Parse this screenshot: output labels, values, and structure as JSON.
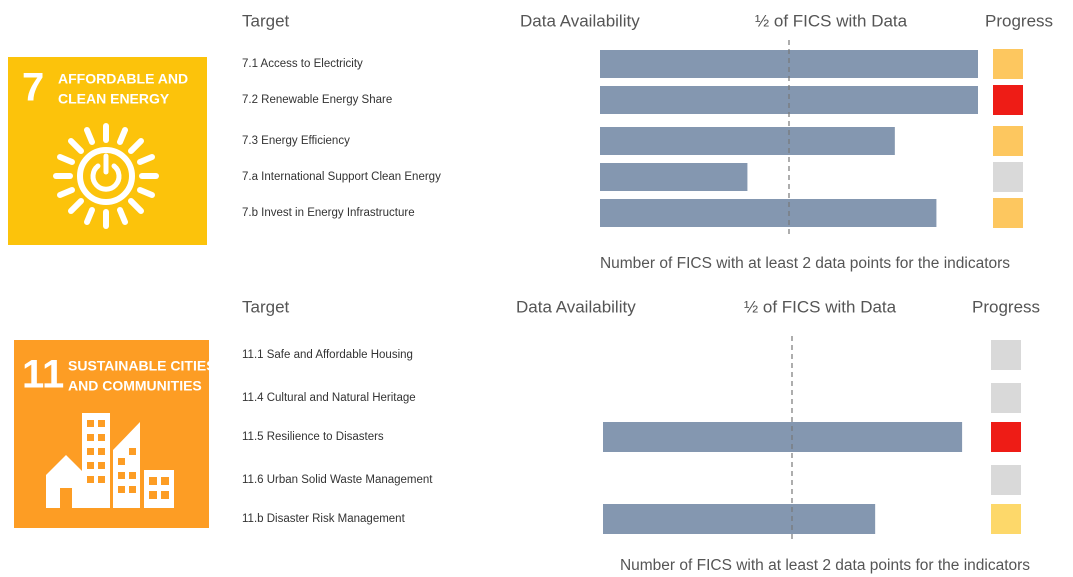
{
  "chart_data": [
    {
      "type": "bar",
      "goal_number": "7",
      "goal_title": [
        "AFFORDABLE AND",
        "CLEAN ENERGY"
      ],
      "goal_color": "#fcc30b",
      "headers": [
        "Target",
        "Data Availability",
        "½ of FICS with Data",
        "Progress"
      ],
      "categories": [
        "7.1 Access to Electricity",
        "7.2 Renewable Energy Share",
        "7.3 Energy Efficiency",
        "7.a International Support Clean Energy",
        "7.b Invest in Energy Infrastructure"
      ],
      "values": [
        100,
        100,
        78,
        39,
        89
      ],
      "color": "#8497b0",
      "progress_colors": [
        "#fdc75f",
        "#ee1c16",
        "#fdc75f",
        "#d9d9d9",
        "#fdc75f"
      ],
      "xlim": [
        0,
        100
      ],
      "half_line": 50,
      "xlabel": "Number of FICS with at least 2 data points for the indicators"
    },
    {
      "type": "bar",
      "goal_number": "11",
      "goal_title": [
        "SUSTAINABLE CITIES",
        "AND COMMUNITIES"
      ],
      "goal_color": "#fd9d24",
      "headers": [
        "Target",
        "Data Availability",
        "½ of FICS with Data",
        "Progress"
      ],
      "categories": [
        "11.1 Safe and Affordable Housing",
        "11.4 Cultural and Natural Heritage",
        "11.5 Resilience to Disasters",
        "11.6 Urban Solid Waste Management",
        "11.b Disaster Risk Management"
      ],
      "values": [
        0,
        0,
        95,
        0,
        72
      ],
      "color": "#8497b0",
      "progress_colors": [
        "#d9d9d9",
        "#d9d9d9",
        "#ee1c16",
        "#d9d9d9",
        "#fdd86a"
      ],
      "xlim": [
        0,
        100
      ],
      "half_line": 50,
      "xlabel": "Number of FICS with at least 2 data points for the indicators"
    }
  ]
}
